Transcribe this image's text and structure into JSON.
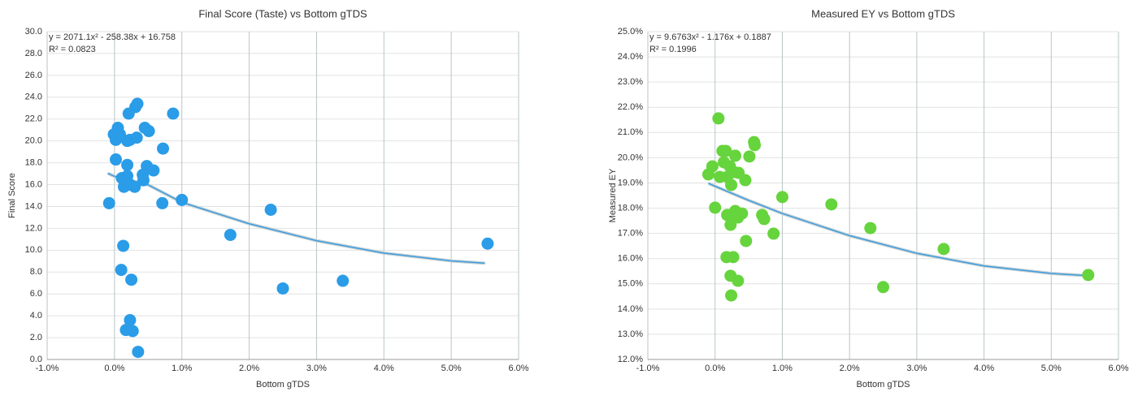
{
  "chart_data": [
    {
      "type": "scatter",
      "title": "Final Score (Taste) vs Bottom gTDS",
      "x_label": "Bottom gTDS",
      "y_label": "Final Score",
      "annotations": [
        "y = 2071.1x² - 258.38x + 16.758",
        "R² = 0.0823"
      ],
      "color": "#2a9ce8",
      "x": [
        -0.08,
        -0.01,
        0.05,
        0.02,
        0.08,
        0.02,
        0.11,
        0.14,
        0.19,
        0.19,
        0.23,
        0.19,
        0.23,
        0.21,
        0.31,
        0.34,
        0.33,
        0.45,
        0.51,
        0.48,
        0.42,
        0.58,
        0.71,
        0.72,
        0.87,
        1.0,
        0.13,
        0.1,
        0.25,
        0.17,
        0.23,
        0.27,
        0.35,
        1.72,
        2.32,
        2.5,
        3.39,
        5.54,
        0.3,
        0.43
      ],
      "values": [
        14.3,
        20.6,
        21.2,
        20.1,
        20.6,
        18.3,
        16.6,
        15.8,
        17.8,
        16.8,
        16.0,
        20.0,
        20.1,
        22.5,
        23.1,
        23.4,
        20.3,
        21.2,
        20.9,
        17.7,
        16.9,
        17.3,
        14.3,
        19.3,
        22.5,
        14.6,
        10.4,
        8.2,
        7.3,
        2.7,
        3.6,
        2.6,
        0.7,
        11.4,
        13.7,
        6.5,
        7.2,
        10.6,
        15.8,
        16.4
      ],
      "trendline": {
        "color": "#3d9be0",
        "x": [
          -0.1,
          0,
          0.5,
          1,
          2,
          3,
          4,
          5,
          5.5
        ],
        "values": [
          17.04,
          16.76,
          15.98,
          14.38,
          12.42,
          10.87,
          9.74,
          9.02,
          8.81
        ]
      },
      "xlim": [
        -1,
        6
      ],
      "xticks": [
        {
          "value": -1,
          "label": "-1.0%"
        },
        {
          "value": 0,
          "label": "0.0%"
        },
        {
          "value": 1,
          "label": "1.0%"
        },
        {
          "value": 2,
          "label": "2.0%"
        },
        {
          "value": 3,
          "label": "3.0%"
        },
        {
          "value": 4,
          "label": "4.0%"
        },
        {
          "value": 5,
          "label": "5.0%"
        },
        {
          "value": 6,
          "label": "6.0%"
        }
      ],
      "ylim": [
        0,
        30
      ],
      "yticks": [
        {
          "value": 0,
          "label": "0.0"
        },
        {
          "value": 2,
          "label": "2.0"
        },
        {
          "value": 4,
          "label": "4.0"
        },
        {
          "value": 6,
          "label": "6.0"
        },
        {
          "value": 8,
          "label": "8.0"
        },
        {
          "value": 10,
          "label": "10.0"
        },
        {
          "value": 12,
          "label": "12.0"
        },
        {
          "value": 14,
          "label": "14.0"
        },
        {
          "value": 16,
          "label": "16.0"
        },
        {
          "value": 18,
          "label": "18.0"
        },
        {
          "value": 20,
          "label": "20.0"
        },
        {
          "value": 22,
          "label": "22.0"
        },
        {
          "value": 24,
          "label": "24.0"
        },
        {
          "value": 26,
          "label": "26.0"
        },
        {
          "value": 28,
          "label": "28.0"
        },
        {
          "value": 30,
          "label": "30.0"
        }
      ],
      "grid": true
    },
    {
      "type": "scatter",
      "title": "Measured EY vs Bottom gTDS",
      "x_label": "Bottom gTDS",
      "y_label": "Measured EY",
      "annotations": [
        "y = 9.6763x² - 1.176x + 0.1887",
        "R² = 0.1996"
      ],
      "color": "#66d43c",
      "x": [
        0.05,
        -0.1,
        -0.04,
        0.11,
        0.16,
        0.3,
        0.13,
        0.22,
        0.07,
        0.18,
        0.28,
        0.35,
        0.24,
        0.45,
        0.51,
        0.58,
        0.59,
        0.0,
        0.18,
        0.23,
        0.3,
        0.34,
        0.4,
        0.7,
        0.73,
        0.46,
        0.87,
        1.0,
        0.17,
        0.27,
        0.23,
        0.34,
        0.24,
        1.73,
        2.31,
        2.5,
        3.4,
        5.55
      ],
      "values": [
        21.56,
        19.34,
        19.66,
        20.27,
        20.27,
        20.08,
        19.82,
        19.66,
        19.24,
        19.24,
        19.43,
        19.4,
        18.92,
        19.11,
        20.05,
        20.62,
        20.5,
        18.02,
        17.73,
        17.34,
        17.89,
        17.63,
        17.79,
        17.73,
        17.57,
        16.7,
        16.99,
        18.44,
        16.06,
        16.06,
        15.32,
        15.12,
        14.54,
        18.15,
        17.21,
        14.87,
        16.38,
        15.35
      ],
      "trendline": {
        "color": "#3d9be0",
        "x": [
          -0.1,
          0,
          0.5,
          1,
          2,
          3,
          4,
          5,
          5.5
        ],
        "values": [
          18.99,
          18.87,
          18.31,
          17.79,
          16.91,
          16.21,
          15.71,
          15.41,
          15.33
        ]
      },
      "xlim": [
        -1,
        6
      ],
      "xticks": [
        {
          "value": -1,
          "label": "-1.0%"
        },
        {
          "value": 0,
          "label": "0.0%"
        },
        {
          "value": 1,
          "label": "1.0%"
        },
        {
          "value": 2,
          "label": "2.0%"
        },
        {
          "value": 3,
          "label": "3.0%"
        },
        {
          "value": 4,
          "label": "4.0%"
        },
        {
          "value": 5,
          "label": "5.0%"
        },
        {
          "value": 6,
          "label": "6.0%"
        }
      ],
      "ylim": [
        12,
        25
      ],
      "yticks": [
        {
          "value": 12,
          "label": "12.0%"
        },
        {
          "value": 13,
          "label": "13.0%"
        },
        {
          "value": 14,
          "label": "14.0%"
        },
        {
          "value": 15,
          "label": "15.0%"
        },
        {
          "value": 16,
          "label": "16.0%"
        },
        {
          "value": 17,
          "label": "17.0%"
        },
        {
          "value": 18,
          "label": "18.0%"
        },
        {
          "value": 19,
          "label": "19.0%"
        },
        {
          "value": 20,
          "label": "20.0%"
        },
        {
          "value": 21,
          "label": "21.0%"
        },
        {
          "value": 22,
          "label": "22.0%"
        },
        {
          "value": 23,
          "label": "23.0%"
        },
        {
          "value": 24,
          "label": "24.0%"
        },
        {
          "value": 25,
          "label": "25.0%"
        }
      ],
      "grid": true
    }
  ]
}
